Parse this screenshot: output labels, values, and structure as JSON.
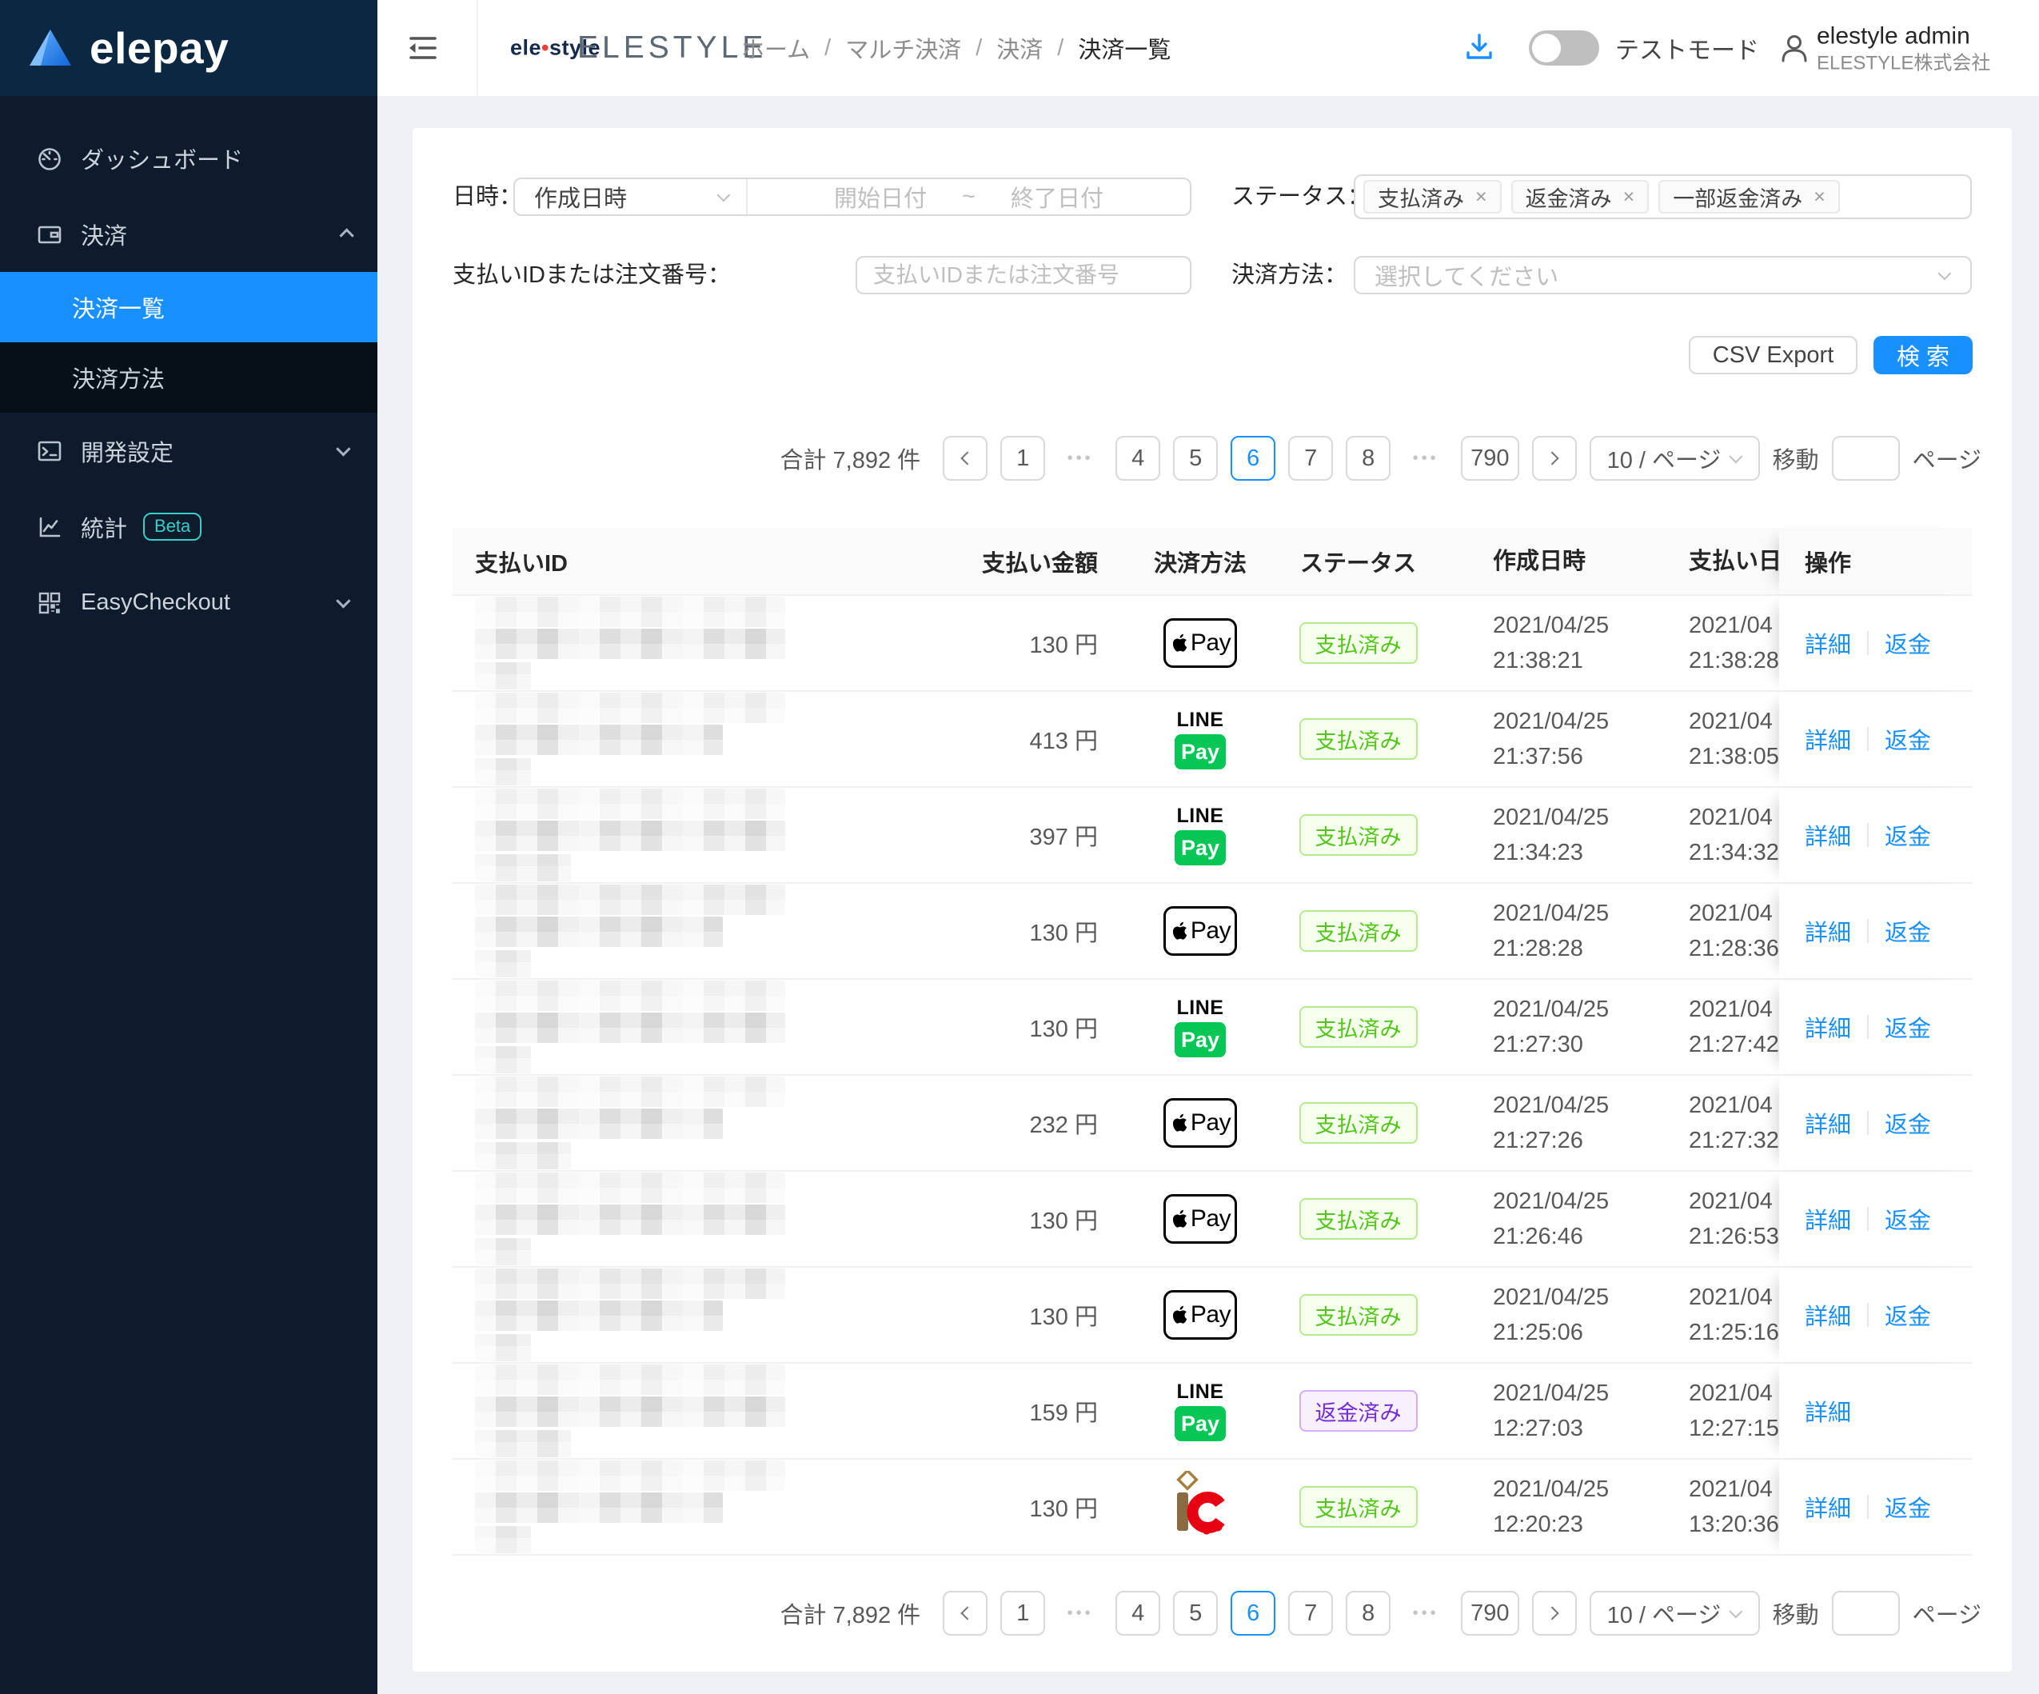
{
  "colors": {
    "accent": "#1890ff",
    "sidebar_band": "#0c2742",
    "sidebar_body": "#0e1b2c",
    "paid_green": "#52c41a",
    "refunded_purple": "#722ed1",
    "line_pay_green": "#06c755",
    "ic_red": "#e60012"
  },
  "sidebar": {
    "logo_text": "elepay",
    "items": [
      {
        "label": "ダッシュボード",
        "icon": "dashboard-icon"
      },
      {
        "label": "決済",
        "icon": "wallet-icon",
        "expanded": true,
        "children": [
          {
            "label": "決済一覧",
            "active": true
          },
          {
            "label": "決済方法"
          }
        ]
      },
      {
        "label": "開発設定",
        "icon": "terminal-icon"
      },
      {
        "label": "統計",
        "icon": "chart-icon",
        "badge": "Beta"
      },
      {
        "label": "EasyCheckout",
        "icon": "qr-icon"
      }
    ]
  },
  "header": {
    "brand_small_1": "ele",
    "brand_small_dot": "•",
    "brand_small_2": "style",
    "brand_big": "ELESTYLE",
    "breadcrumb": [
      "ホーム",
      "マルチ決済",
      "決済",
      "決済一覧"
    ],
    "breadcrumb_separator": "/",
    "test_mode_label": "テストモード",
    "user_name": "elestyle admin",
    "user_org": "ELESTYLE株式会社"
  },
  "filters": {
    "date_label": "日時：",
    "date_type_value": "作成日時",
    "date_start_placeholder": "開始日付",
    "date_separator": "~",
    "date_end_placeholder": "終了日付",
    "status_label": "ステータス：",
    "status_tags": [
      "支払済み",
      "返金済み",
      "一部返金済み"
    ],
    "tag_close": "×",
    "id_label": "支払いIDまたは注文番号：",
    "id_placeholder": "支払いIDまたは注文番号",
    "id_value": "",
    "method_label": "決済方法：",
    "method_placeholder": "選択してください",
    "csv_button": "CSV Export",
    "search_button": "検 索"
  },
  "pagination": {
    "total_label": "合計 7,892 件",
    "sequence": [
      "prev",
      "1",
      "ellipsis",
      "4",
      "5",
      "6",
      "7",
      "8",
      "ellipsis",
      "790",
      "next"
    ],
    "active_page": "6",
    "ellipsis": "•••",
    "page_size_label": "10 / ページ",
    "goto_label": "移動",
    "goto_value": "",
    "goto_suffix": "ページ"
  },
  "table": {
    "columns": [
      "支払いID",
      "支払い金額",
      "決済方法",
      "ステータス",
      "作成日時",
      "支払い日時",
      "操作"
    ],
    "method_icons": {
      "apple_pay_text": "Pay",
      "line_pay_top": "LINE",
      "line_pay_bottom": "Pay",
      "ic_name": "transit-ic"
    },
    "rows": [
      {
        "amount": "130 円",
        "method": "apple-pay",
        "status": {
          "label": "支払済み",
          "type": "paid"
        },
        "created": [
          "2021/04/25",
          "21:38:21"
        ],
        "paid_at": [
          "2021/04",
          "21:38:28"
        ],
        "actions": [
          "詳細",
          "返金"
        ]
      },
      {
        "amount": "413 円",
        "method": "line-pay",
        "status": {
          "label": "支払済み",
          "type": "paid"
        },
        "created": [
          "2021/04/25",
          "21:37:56"
        ],
        "paid_at": [
          "2021/04",
          "21:38:05"
        ],
        "actions": [
          "詳細",
          "返金"
        ]
      },
      {
        "amount": "397 円",
        "method": "line-pay",
        "status": {
          "label": "支払済み",
          "type": "paid"
        },
        "created": [
          "2021/04/25",
          "21:34:23"
        ],
        "paid_at": [
          "2021/04",
          "21:34:32"
        ],
        "actions": [
          "詳細",
          "返金"
        ]
      },
      {
        "amount": "130 円",
        "method": "apple-pay",
        "status": {
          "label": "支払済み",
          "type": "paid"
        },
        "created": [
          "2021/04/25",
          "21:28:28"
        ],
        "paid_at": [
          "2021/04",
          "21:28:36"
        ],
        "actions": [
          "詳細",
          "返金"
        ]
      },
      {
        "amount": "130 円",
        "method": "line-pay",
        "status": {
          "label": "支払済み",
          "type": "paid"
        },
        "created": [
          "2021/04/25",
          "21:27:30"
        ],
        "paid_at": [
          "2021/04",
          "21:27:42"
        ],
        "actions": [
          "詳細",
          "返金"
        ]
      },
      {
        "amount": "232 円",
        "method": "apple-pay",
        "status": {
          "label": "支払済み",
          "type": "paid"
        },
        "created": [
          "2021/04/25",
          "21:27:26"
        ],
        "paid_at": [
          "2021/04",
          "21:27:32"
        ],
        "actions": [
          "詳細",
          "返金"
        ]
      },
      {
        "amount": "130 円",
        "method": "apple-pay",
        "status": {
          "label": "支払済み",
          "type": "paid"
        },
        "created": [
          "2021/04/25",
          "21:26:46"
        ],
        "paid_at": [
          "2021/04",
          "21:26:53"
        ],
        "actions": [
          "詳細",
          "返金"
        ]
      },
      {
        "amount": "130 円",
        "method": "apple-pay",
        "status": {
          "label": "支払済み",
          "type": "paid"
        },
        "created": [
          "2021/04/25",
          "21:25:06"
        ],
        "paid_at": [
          "2021/04",
          "21:25:16"
        ],
        "actions": [
          "詳細",
          "返金"
        ]
      },
      {
        "amount": "159 円",
        "method": "line-pay",
        "status": {
          "label": "返金済み",
          "type": "refunded"
        },
        "created": [
          "2021/04/25",
          "12:27:03"
        ],
        "paid_at": [
          "2021/04",
          "12:27:15"
        ],
        "actions": [
          "詳細"
        ]
      },
      {
        "amount": "130 円",
        "method": "ic",
        "status": {
          "label": "支払済み",
          "type": "paid"
        },
        "created": [
          "2021/04/25",
          "12:20:23"
        ],
        "paid_at": [
          "2021/04",
          "13:20:36"
        ],
        "actions": [
          "詳細",
          "返金"
        ]
      }
    ]
  }
}
